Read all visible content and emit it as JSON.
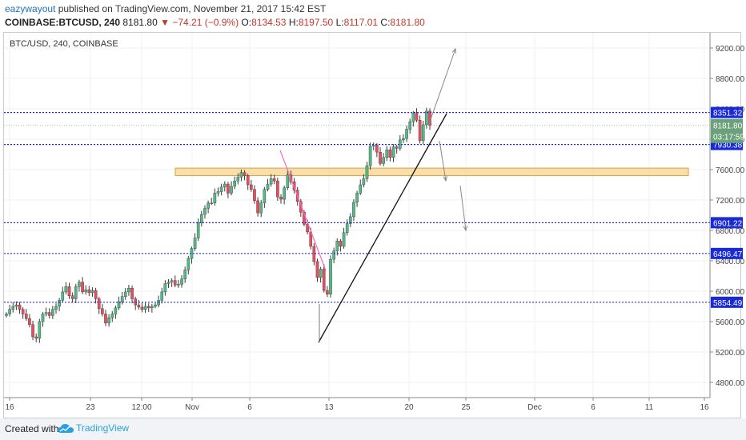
{
  "header": {
    "author": "eazywayout",
    "published_text": " published on TradingView.com, November 21, 2017 15:42 EST",
    "symbol": "COINBASE:BTCUSD, 240",
    "last": "8181.80",
    "change": "−74.21 (−0.9%)",
    "o_label": "O:",
    "o_val": "8134.53",
    "h_label": "H:",
    "h_val": "8197.50",
    "l_label": "L:",
    "l_val": "8117.01",
    "c_label": "C:",
    "c_val": "8181.80"
  },
  "chart_title": "BTC/USD, 240, COINBASE",
  "colors": {
    "up": "#53b987",
    "down": "#eb4d5c",
    "level": "#1a2bd6",
    "zone_fill": "#f5d693",
    "zone_stroke": "#d4a339",
    "price_tag": "#1a2bd6",
    "last_tag": "#6aa07a"
  },
  "chart_data": {
    "type": "candlestick",
    "y_axis": {
      "min": 4600,
      "max": 9400,
      "ticks": [
        4800,
        5200,
        5600,
        6000,
        6400,
        6800,
        7200,
        7600,
        8000,
        8400,
        8800,
        9200
      ],
      "tick_labels": [
        "4800.00",
        "5200.00",
        "5600.00",
        "6000.00",
        "6400.00",
        "6800.00",
        "7200.00",
        "7600.00",
        "8000.00",
        "8400.00",
        "8800.00",
        "9200.00"
      ]
    },
    "x_axis": {
      "tick_labels": [
        "16",
        "23",
        "12:00",
        "Nov",
        "6",
        "13",
        "20",
        "25",
        "Dec",
        "6",
        "11",
        "16"
      ]
    },
    "horizontal_levels": [
      8351.32,
      7930.38,
      6901.22,
      6496.47,
      5854.49
    ],
    "level_labels": [
      "8351.32",
      "7930.38",
      "6901.22",
      "6496.47",
      "5854.49"
    ],
    "last_price_label": "8181.80",
    "countdown_label": "03:17:59",
    "resistance_zone": [
      7520,
      7620
    ],
    "closes": [
      5700,
      5760,
      5800,
      5820,
      5760,
      5700,
      5640,
      5560,
      5400,
      5380,
      5600,
      5700,
      5720,
      5680,
      5760,
      5800,
      5880,
      5990,
      6060,
      5940,
      5900,
      6060,
      6120,
      5990,
      6020,
      5980,
      6010,
      5900,
      5770,
      5700,
      5580,
      5650,
      5700,
      5780,
      5860,
      5930,
      5990,
      6040,
      5900,
      5820,
      5790,
      5760,
      5800,
      5780,
      5800,
      5820,
      5880,
      5990,
      6100,
      6120,
      6140,
      6080,
      6090,
      6160,
      6280,
      6430,
      6560,
      6700,
      6900,
      7010,
      7090,
      7160,
      7160,
      7290,
      7310,
      7370,
      7410,
      7290,
      7380,
      7450,
      7500,
      7560,
      7520,
      7400,
      7340,
      7190,
      7030,
      7160,
      7340,
      7410,
      7480,
      7450,
      7240,
      7210,
      7360,
      7530,
      7440,
      7330,
      7180,
      7040,
      6880,
      6780,
      6590,
      6390,
      6180,
      6290,
      6010,
      5960,
      6420,
      6530,
      6660,
      6590,
      6770,
      6890,
      6980,
      7170,
      7290,
      7400,
      7480,
      7650,
      7910,
      7920,
      7830,
      7680,
      7760,
      7860,
      7760,
      7900,
      7880,
      7990,
      8010,
      8130,
      8230,
      8340,
      8250,
      7980,
      8190,
      8370,
      8181.8
    ]
  }
}
